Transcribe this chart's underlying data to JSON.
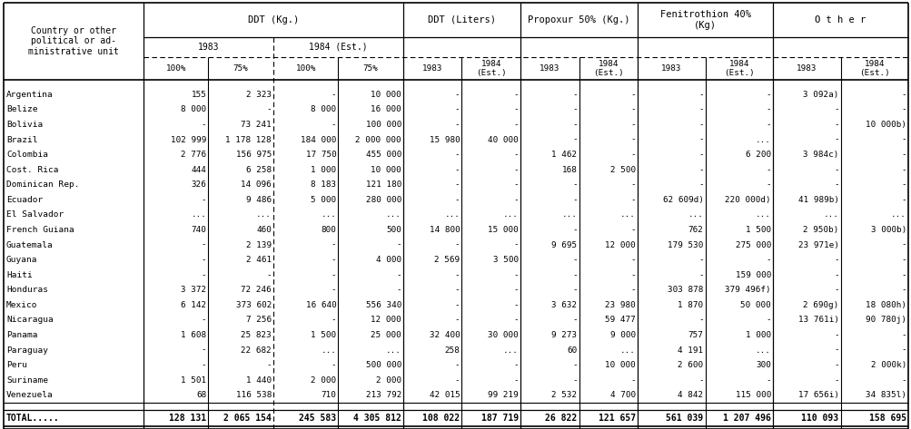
{
  "countries": [
    "Argentina",
    "Belize",
    "Bolivia",
    "Brazil",
    "Colombia",
    "Cost. Rica",
    "Dominican Rep.",
    "Ecuador",
    "El Salvador",
    "French Guiana",
    "Guatemala",
    "Guyana",
    "Haiti",
    "Honduras",
    "Mexico",
    "Nicaragua",
    "Panama",
    "Paraguay",
    "Peru",
    "Suriname",
    "Venezuela"
  ],
  "data": [
    [
      "155",
      "2 323",
      "-",
      "10 000",
      "-",
      "-",
      "-",
      "-",
      "-",
      "-",
      "3 092a)",
      "-"
    ],
    [
      "8 000",
      "-",
      "8 000",
      "16 000",
      "-",
      "-",
      "-",
      "-",
      "-",
      "-",
      "-",
      "-"
    ],
    [
      "-",
      "73 241",
      "-",
      "100 000",
      "-",
      "-",
      "-",
      "-",
      "-",
      "-",
      "-",
      "10 000b)"
    ],
    [
      "102 999",
      "1 178 128",
      "184 000",
      "2 000 000",
      "15 980",
      "40 000",
      "-",
      "-",
      "-",
      "...",
      "-",
      "-"
    ],
    [
      "2 776",
      "156 975",
      "17 750",
      "455 000",
      "-",
      "-",
      "1 462",
      "-",
      "-",
      "6 200",
      "3 984c)",
      "-"
    ],
    [
      "444",
      "6 258",
      "1 000",
      "10 000",
      "-",
      "-",
      "168",
      "2 500",
      "-",
      "-",
      "-",
      "-"
    ],
    [
      "326",
      "14 096",
      "8 183",
      "121 180",
      "-",
      "-",
      "-",
      "-",
      "-",
      "-",
      "-",
      "-"
    ],
    [
      "-",
      "9 486",
      "5 000",
      "280 000",
      "-",
      "-",
      "-",
      "-",
      "62 609d)",
      "220 000d)",
      "41 989b)",
      "-"
    ],
    [
      "...",
      "...",
      "...",
      "...",
      "...",
      "...",
      "...",
      "...",
      "...",
      "...",
      "...",
      "..."
    ],
    [
      "740",
      "460",
      "800",
      "500",
      "14 800",
      "15 000",
      "-",
      "-",
      "762",
      "1 500",
      "2 950b)",
      "3 000b)"
    ],
    [
      "-",
      "2 139",
      "-",
      "-",
      "-",
      "-",
      "9 695",
      "12 000",
      "179 530",
      "275 000",
      "23 971e)",
      "-"
    ],
    [
      "-",
      "2 461",
      "-",
      "4 000",
      "2 569",
      "3 500",
      "-",
      "-",
      "-",
      "-",
      "-",
      "-"
    ],
    [
      "-",
      "-",
      "-",
      "-",
      "-",
      "-",
      "-",
      "-",
      "-",
      "159 000",
      "-",
      "-"
    ],
    [
      "3 372",
      "72 246",
      "-",
      "-",
      "-",
      "-",
      "-",
      "-",
      "303 878",
      "379 496f)",
      "-",
      "-"
    ],
    [
      "6 142",
      "373 602",
      "16 640",
      "556 340",
      "-",
      "-",
      "3 632",
      "23 980",
      "1 870",
      "50 000",
      "2 690g)",
      "18 080h)"
    ],
    [
      "-",
      "7 256",
      "-",
      "12 000",
      "-",
      "-",
      "-",
      "59 477",
      "-",
      "-",
      "13 761i)",
      "90 780j)"
    ],
    [
      "1 608",
      "25 823",
      "1 500",
      "25 000",
      "32 400",
      "30 000",
      "9 273",
      "9 000",
      "757",
      "1 000",
      "-",
      "-"
    ],
    [
      "-",
      "22 682",
      "...",
      "...",
      "258",
      "...",
      "60",
      "...",
      "4 191",
      "...",
      "-",
      "-"
    ],
    [
      "-",
      "-",
      "-",
      "500 000",
      "-",
      "-",
      "-",
      "10 000",
      "2 600",
      "300",
      "-",
      "2 000k)"
    ],
    [
      "1 501",
      "1 440",
      "2 000",
      "2 000",
      "-",
      "-",
      "-",
      "-",
      "-",
      "-",
      "-",
      "-"
    ],
    [
      "68",
      "116 538",
      "710",
      "213 792",
      "42 015",
      "99 219",
      "2 532",
      "4 700",
      "4 842",
      "115 000",
      "17 656i)",
      "34 835l)"
    ]
  ],
  "total_row": [
    "TOTAL.....",
    "128 131",
    "2 065 154",
    "245 583",
    "4 305 812",
    "108 022",
    "187 719",
    "26 822",
    "121 657",
    "561 039",
    "1 207 496",
    "110 093",
    "158 695"
  ],
  "col_widths_raw": [
    155,
    72,
    72,
    72,
    72,
    65,
    65,
    65,
    65,
    75,
    75,
    75,
    75
  ],
  "bg_color": "#ffffff",
  "font_size": 7.0,
  "header_font_size": 7.5
}
